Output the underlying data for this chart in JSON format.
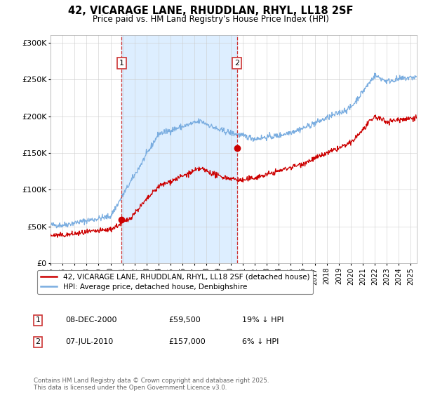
{
  "title": "42, VICARAGE LANE, RHUDDLAN, RHYL, LL18 2SF",
  "subtitle": "Price paid vs. HM Land Registry's House Price Index (HPI)",
  "x_start": 1995.0,
  "x_end": 2025.5,
  "y_min": 0,
  "y_max": 310000,
  "yticks": [
    0,
    50000,
    100000,
    150000,
    200000,
    250000,
    300000
  ],
  "ytick_labels": [
    "£0",
    "£50K",
    "£100K",
    "£150K",
    "£200K",
    "£250K",
    "£300K"
  ],
  "xticks": [
    1995,
    1996,
    1997,
    1998,
    1999,
    2000,
    2001,
    2002,
    2003,
    2004,
    2005,
    2006,
    2007,
    2008,
    2009,
    2010,
    2011,
    2012,
    2013,
    2014,
    2015,
    2016,
    2017,
    2018,
    2019,
    2020,
    2021,
    2022,
    2023,
    2024,
    2025
  ],
  "sale1_x": 2000.93,
  "sale1_y": 59500,
  "sale1_label": "1",
  "sale1_date": "08-DEC-2000",
  "sale1_price": "£59,500",
  "sale1_hpi": "19% ↓ HPI",
  "sale2_x": 2010.52,
  "sale2_y": 157000,
  "sale2_label": "2",
  "sale2_date": "07-JUL-2010",
  "sale2_price": "£157,000",
  "sale2_hpi": "6% ↓ HPI",
  "red_line_color": "#cc0000",
  "blue_line_color": "#7aade0",
  "shaded_color": "#ddeeff",
  "sale_marker_color": "#cc0000",
  "background_color": "#ffffff",
  "legend_label_red": "42, VICARAGE LANE, RHUDDLAN, RHYL, LL18 2SF (detached house)",
  "legend_label_blue": "HPI: Average price, detached house, Denbighshire",
  "footer": "Contains HM Land Registry data © Crown copyright and database right 2025.\nThis data is licensed under the Open Government Licence v3.0."
}
